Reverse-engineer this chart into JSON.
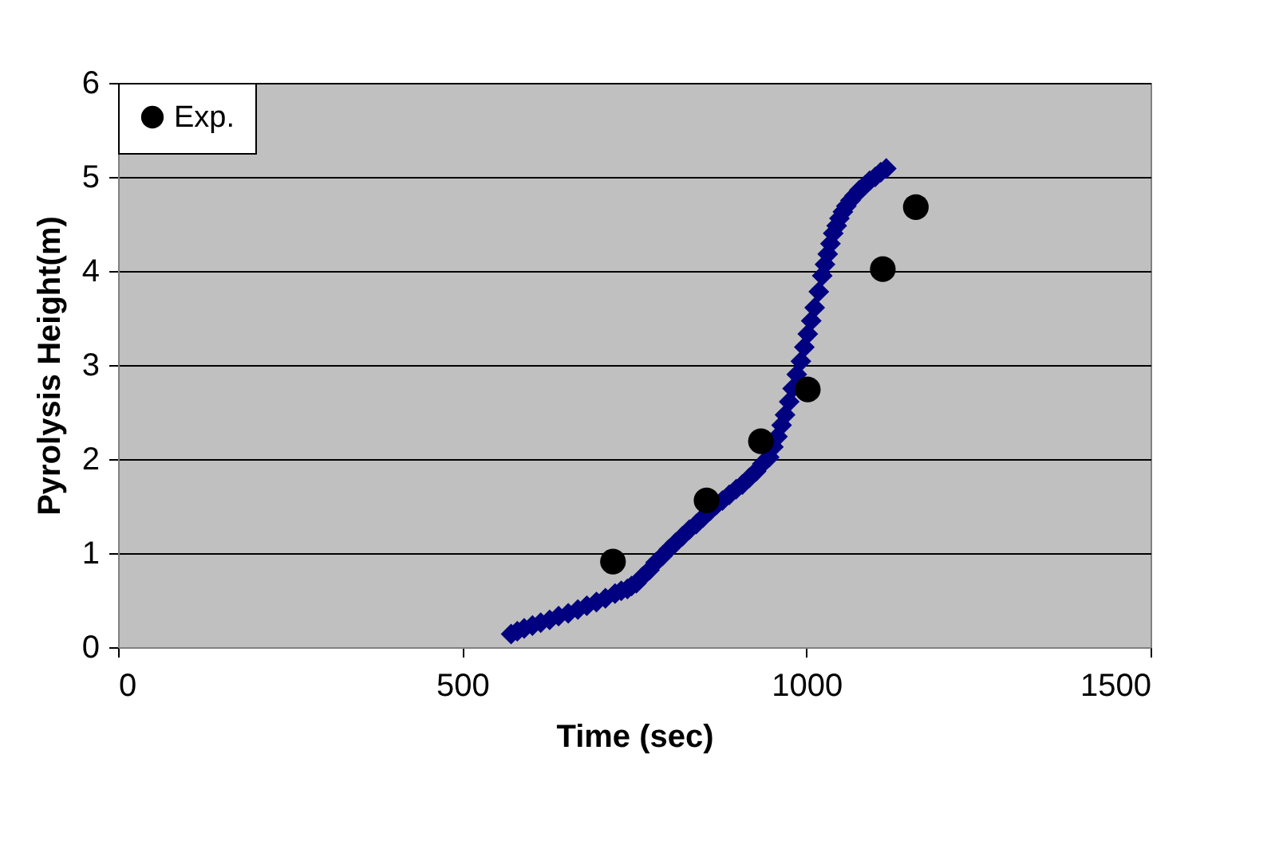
{
  "chart_data": {
    "type": "scatter",
    "xlabel": "Time (sec)",
    "ylabel": "Pyrolysis Height(m)",
    "xlim": [
      0,
      1500
    ],
    "xticks": [
      0,
      500,
      1000,
      1500
    ],
    "ylim": [
      0,
      6
    ],
    "yticks": [
      0,
      1,
      2,
      3,
      4,
      5,
      6
    ],
    "grid": "y",
    "legend": "top left",
    "series": [
      {
        "color": "#000080",
        "marker": "diamond",
        "x": [
          571,
          580,
          590,
          602,
          614,
          627,
          640,
          654,
          668,
          681,
          695,
          708,
          722,
          731,
          740,
          746,
          753,
          762,
          772,
          781,
          791,
          800,
          810,
          820,
          830,
          840,
          850,
          860,
          869,
          878,
          888,
          898,
          907,
          917,
          927,
          936,
          946,
          952,
          958,
          964,
          969,
          975,
          980,
          986,
          992,
          997,
          1002,
          1007,
          1012,
          1018,
          1023,
          1027,
          1031,
          1035,
          1039,
          1044,
          1048,
          1053,
          1058,
          1064,
          1070,
          1077,
          1085,
          1092,
          1100,
          1108,
          1116
        ],
        "values": [
          0.14,
          0.17,
          0.2,
          0.23,
          0.26,
          0.29,
          0.33,
          0.36,
          0.4,
          0.44,
          0.48,
          0.52,
          0.57,
          0.6,
          0.62,
          0.65,
          0.68,
          0.75,
          0.82,
          0.9,
          0.97,
          1.04,
          1.11,
          1.18,
          1.25,
          1.31,
          1.38,
          1.45,
          1.51,
          1.56,
          1.62,
          1.68,
          1.73,
          1.8,
          1.87,
          1.95,
          2.02,
          2.13,
          2.24,
          2.36,
          2.47,
          2.61,
          2.75,
          2.9,
          3.04,
          3.19,
          3.33,
          3.47,
          3.61,
          3.78,
          3.95,
          4.07,
          4.18,
          4.29,
          4.4,
          4.48,
          4.56,
          4.63,
          4.69,
          4.75,
          4.8,
          4.86,
          4.91,
          4.96,
          5.0,
          5.05,
          5.09
        ]
      },
      {
        "name": "Exp.",
        "color": "#000000",
        "marker": "circle",
        "x": [
          719,
          855,
          934,
          1002,
          1111,
          1159
        ],
        "values": [
          0.91,
          1.56,
          2.19,
          2.74,
          4.02,
          4.68
        ]
      }
    ]
  }
}
